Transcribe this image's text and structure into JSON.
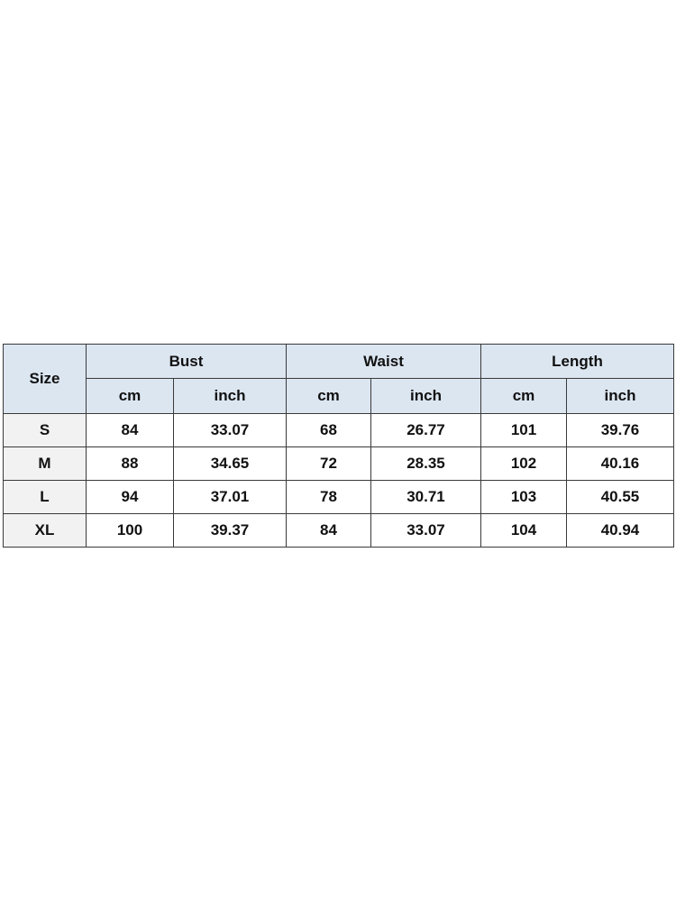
{
  "table": {
    "size_header": "Size",
    "groups": [
      "Bust",
      "Waist",
      "Length"
    ],
    "units": [
      "cm",
      "inch",
      "cm",
      "inch",
      "cm",
      "inch"
    ],
    "rows": [
      {
        "size": "S",
        "values": [
          "84",
          "33.07",
          "68",
          "26.77",
          "101",
          "39.76"
        ]
      },
      {
        "size": "M",
        "values": [
          "88",
          "34.65",
          "72",
          "28.35",
          "102",
          "40.16"
        ]
      },
      {
        "size": "L",
        "values": [
          "94",
          "37.01",
          "78",
          "30.71",
          "103",
          "40.55"
        ]
      },
      {
        "size": "XL",
        "values": [
          "100",
          "39.37",
          "84",
          "33.07",
          "104",
          "40.94"
        ]
      }
    ],
    "colors": {
      "header_bg": "#dce6f1",
      "size_col_bg": "#f2f2f2",
      "border": "#3a3a3a"
    }
  }
}
